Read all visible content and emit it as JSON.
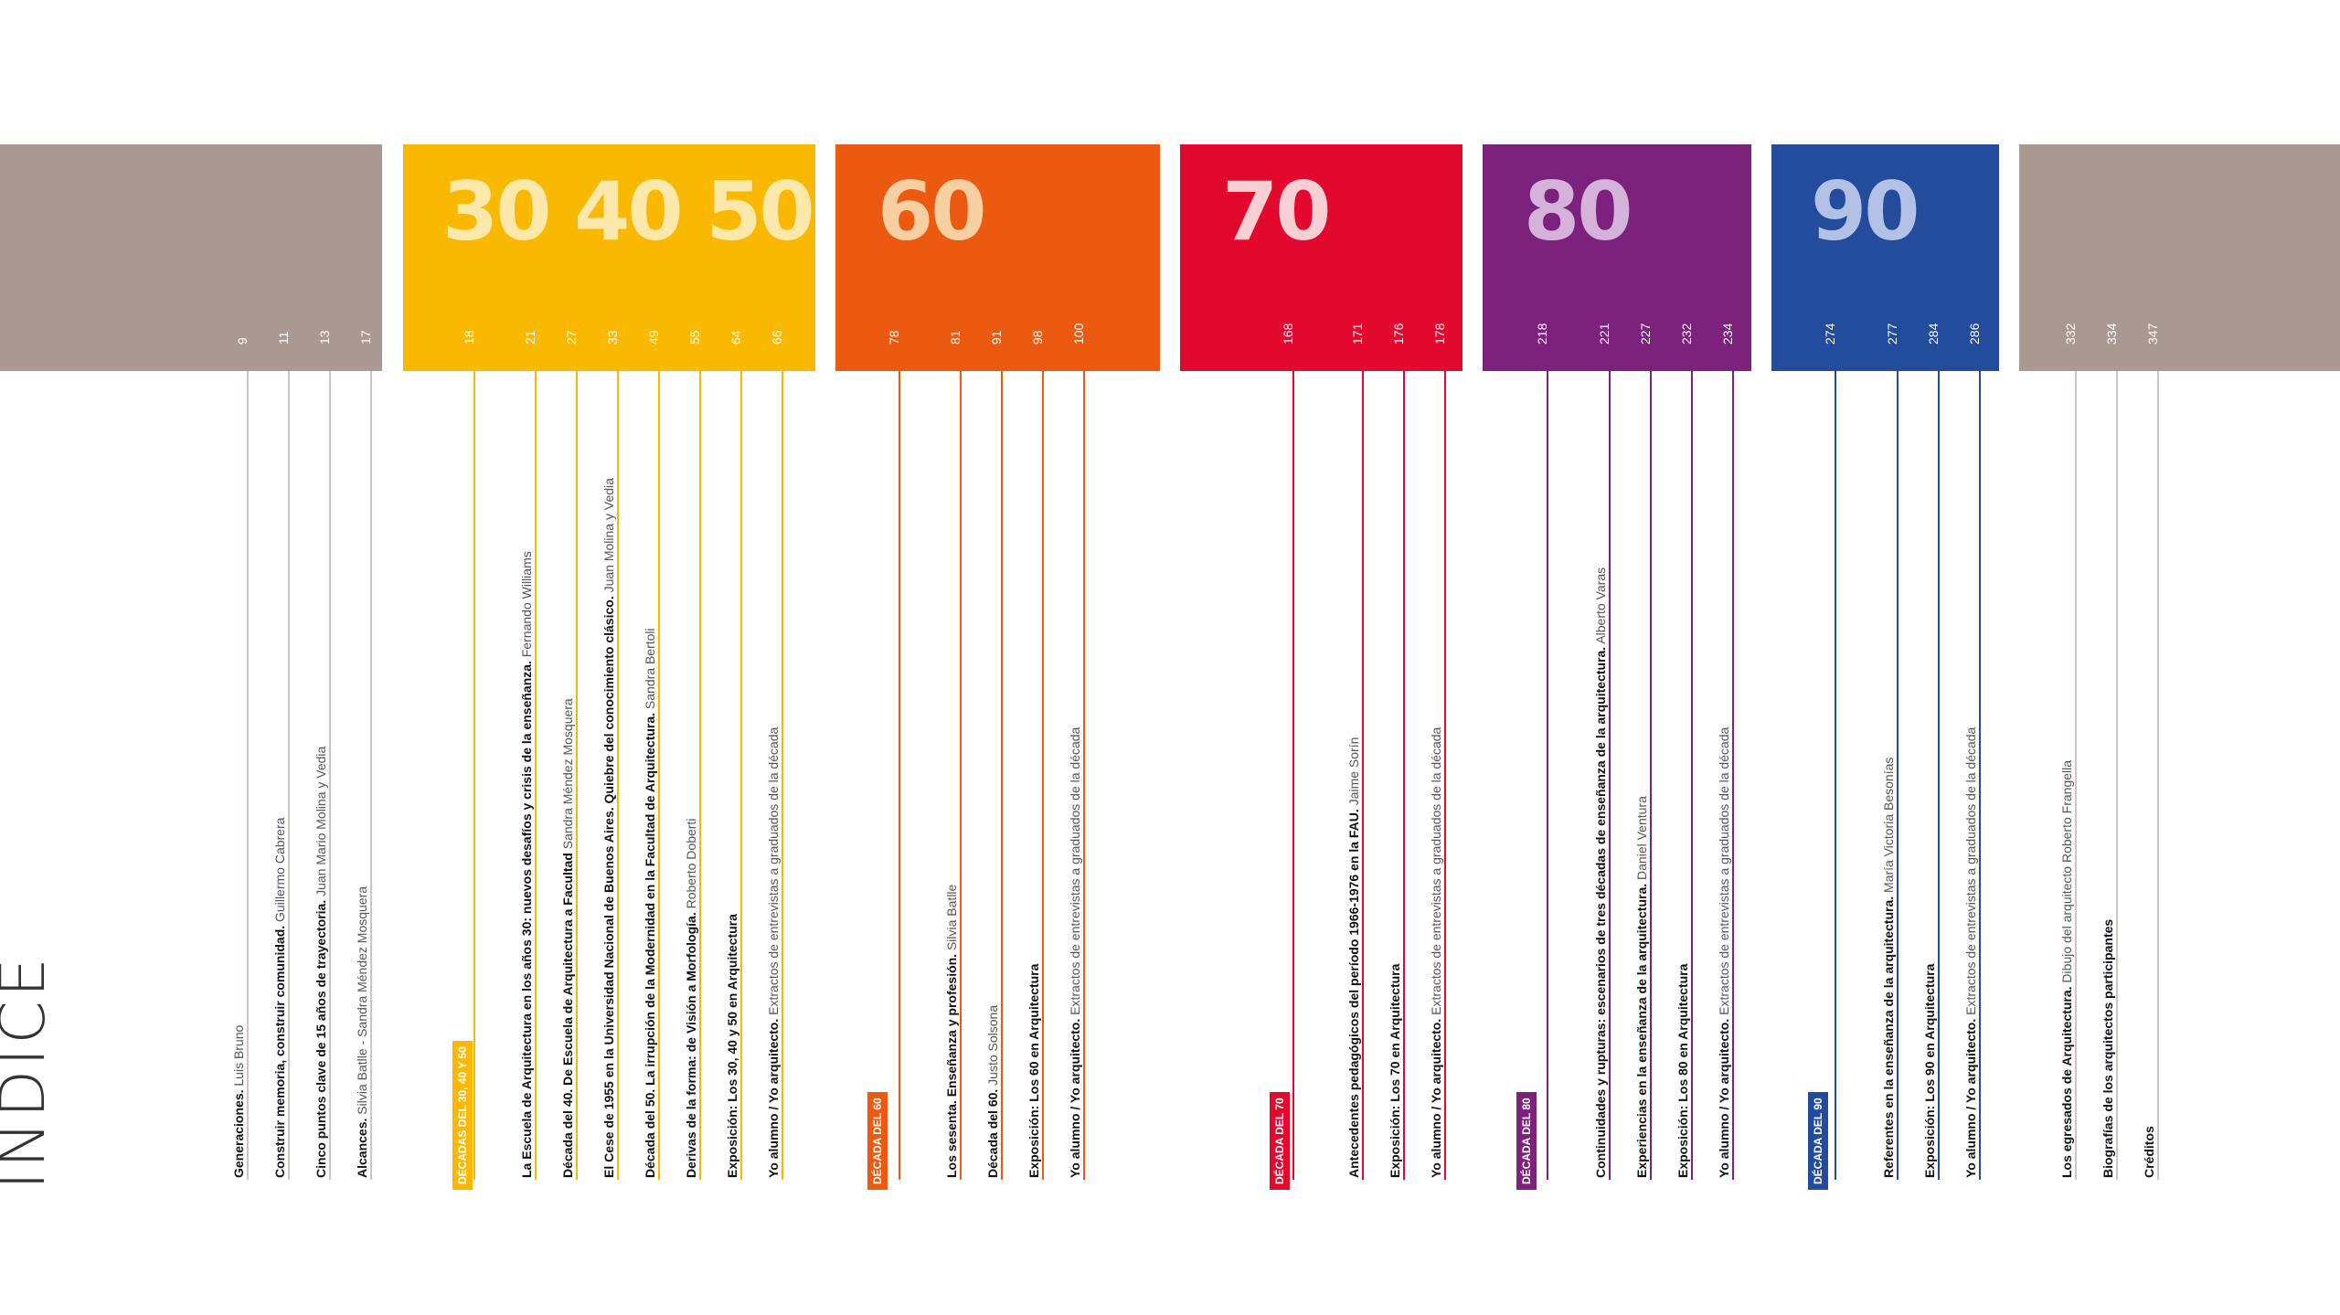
{
  "title": "ÍNDICE",
  "colors": {
    "gray": "#aa9993",
    "yellow": "#f9b900",
    "orange": "#ec5a11",
    "red": "#e2082e",
    "purple": "#7c227d",
    "blue": "#244c9c",
    "numeral_yellow": "#fde8ac",
    "numeral_orange": "#f8cfa0",
    "numeral_red": "#f8cfd2",
    "numeral_purple": "#d5b2da",
    "numeral_blue": "#b3c1e6"
  },
  "sections": [
    {
      "color": "gray",
      "entries": [
        {
          "page": "9",
          "bold": "Generaciones.",
          "author": "Luis Bruno"
        },
        {
          "page": "11",
          "bold": "Construir memoria, construir comunidad.",
          "author": "Guillermo Cabrera"
        },
        {
          "page": "13",
          "bold": "Cinco puntos clave de 15 años de trayectoria.",
          "author": "Juan Mario Molina y Vedia"
        },
        {
          "page": "17",
          "bold": "Alcances.",
          "author": "Silvia Batlle - Sandra Méndez Mosquera"
        }
      ]
    },
    {
      "color": "yellow",
      "numerals": "30 40 50",
      "badge": "DÉCADAS DEL 30, 40 Y 50",
      "entries": [
        {
          "page": "18",
          "bold": "",
          "author": ""
        },
        {
          "page": "21",
          "bold": "La Escuela de Arquitectura en los años 30: nuevos desafíos y crisis de la enseñanza.",
          "author": "Fernando Williams"
        },
        {
          "page": "27",
          "bold": "Década del 40. De Escuela de Arquitectura a Facultad",
          "author": "Sandra Méndez Mosquera"
        },
        {
          "page": "33",
          "bold": "El Cese de 1955 en la Universidad Nacional de Buenos Aires. Quiebre del conocimiento clásico.",
          "author": "Juan Molina y Vedia"
        },
        {
          "page": "49",
          "bold": "Década del 50. La irrupción de la Modernidad en la Facultad de Arquitectura.",
          "author": "Sandra Bertoli"
        },
        {
          "page": "55",
          "bold": "Derivas de la forma: de Visión a Morfología.",
          "author": "Roberto Doberti"
        },
        {
          "page": "64",
          "bold": "Exposición: Los 30, 40 y 50 en Arquitectura",
          "author": ""
        },
        {
          "page": "66",
          "bold": "Yo alumno / Yo arquitecto.",
          "author": "Extractos de entrevistas a graduados de la década"
        }
      ]
    },
    {
      "color": "orange",
      "numerals": "60",
      "badge": "DÉCADA DEL 60",
      "entries": [
        {
          "page": "78",
          "bold": "",
          "author": ""
        },
        {
          "page": "81",
          "bold": "Los sesenta. Enseñanza y profesión.",
          "author": "Silvia Batlle"
        },
        {
          "page": "91",
          "bold": "Década del 60.",
          "author": "Justo Solsona"
        },
        {
          "page": "98",
          "bold": "Exposición: Los 60 en Arquitectura",
          "author": ""
        },
        {
          "page": "100",
          "bold": "Yo alumno / Yo arquitecto.",
          "author": "Extractos de entrevistas a graduados de la década"
        }
      ]
    },
    {
      "color": "red",
      "numerals": "70",
      "badge": "DÉCADA DEL 70",
      "entries": [
        {
          "page": "168",
          "bold": "",
          "author": ""
        },
        {
          "page": "171",
          "bold": "Antecedentes pedagógicos del período 1966-1976 en la FAU.",
          "author": "Jaime Sorín"
        },
        {
          "page": "176",
          "bold": "Exposición: Los 70 en Arquitectura",
          "author": ""
        },
        {
          "page": "178",
          "bold": "Yo alumno / Yo arquitecto.",
          "author": "Extractos de entrevistas a graduados de la década"
        }
      ]
    },
    {
      "color": "purple",
      "numerals": "80",
      "badge": "DÉCADA DEL 80",
      "entries": [
        {
          "page": "218",
          "bold": "",
          "author": ""
        },
        {
          "page": "221",
          "bold": "Continuidades y rupturas: escenarios de tres décadas de enseñanza de la arquitectura.",
          "author": "Alberto Varas"
        },
        {
          "page": "227",
          "bold": "Experiencias en la enseñanza de la arquitectura.",
          "author": "Daniel Ventura"
        },
        {
          "page": "232",
          "bold": "Exposición: Los 80 en Arquitectura",
          "author": ""
        },
        {
          "page": "234",
          "bold": "Yo alumno / Yo arquitecto.",
          "author": "Extractos de entrevistas a graduados de la década"
        }
      ]
    },
    {
      "color": "blue",
      "numerals": "90",
      "badge": "DÉCADA DEL 90",
      "entries": [
        {
          "page": "274",
          "bold": "",
          "author": ""
        },
        {
          "page": "277",
          "bold": "Referentes en la enseñanza de la arquitectura.",
          "author": "María Victoria Besonías"
        },
        {
          "page": "284",
          "bold": "Exposición: Los 90 en Arquitectura",
          "author": ""
        },
        {
          "page": "286",
          "bold": "Yo alumno / Yo arquitecto.",
          "author": "Extractos de entrevistas a graduados de la década"
        }
      ]
    },
    {
      "color": "gray",
      "entries": [
        {
          "page": "332",
          "bold": "Los egresados de Arquitectura.",
          "author": "Dibujo del arquitecto Roberto Frangella"
        },
        {
          "page": "334",
          "bold": "Biografías de los arquitectos participantes",
          "author": ""
        },
        {
          "page": "347",
          "bold": "Créditos",
          "author": ""
        }
      ]
    }
  ]
}
